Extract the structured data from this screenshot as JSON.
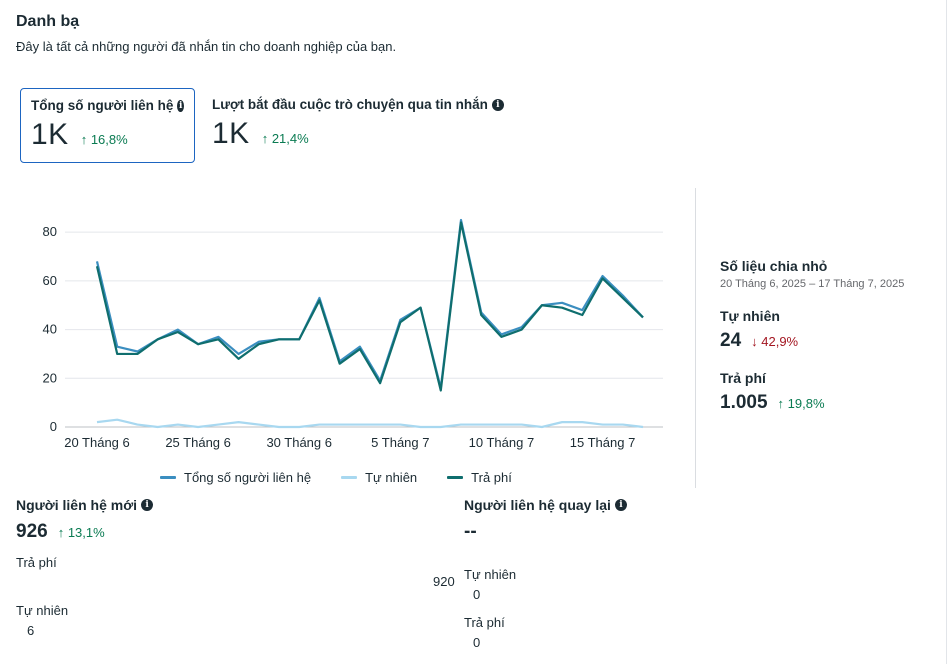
{
  "header": {
    "title": "Danh bạ",
    "subtitle": "Đây là tất cả những người đã nhắn tin cho doanh nghiệp của bạn."
  },
  "metrics": [
    {
      "label": "Tổng số người liên hệ",
      "value": "1K",
      "change": "↑ 16,8%",
      "selected": true
    },
    {
      "label": "Lượt bắt đầu cuộc trò chuyện qua tin nhắn",
      "value": "1K",
      "change": "↑ 21,4%",
      "selected": false
    }
  ],
  "icons": {
    "info": "info-icon",
    "arrow_up": "arrow-up-icon",
    "arrow_down": "arrow-down-icon"
  },
  "colors": {
    "total": "#3b8ec0",
    "organic": "#a8d8f0",
    "paid": "#0f6e6e",
    "positive": "#0a7b52",
    "negative": "#a31621",
    "selected_border": "#1d65c1"
  },
  "chart_data": {
    "type": "line",
    "x": [
      "20 Tháng 6",
      "21 Tháng 6",
      "22 Tháng 6",
      "23 Tháng 6",
      "24 Tháng 6",
      "25 Tháng 6",
      "26 Tháng 6",
      "27 Tháng 6",
      "28 Tháng 6",
      "29 Tháng 6",
      "30 Tháng 6",
      "1 Tháng 7",
      "2 Tháng 7",
      "3 Tháng 7",
      "4 Tháng 7",
      "5 Tháng 7",
      "6 Tháng 7",
      "7 Tháng 7",
      "8 Tháng 7",
      "9 Tháng 7",
      "10 Tháng 7",
      "11 Tháng 7",
      "12 Tháng 7",
      "13 Tháng 7",
      "14 Tháng 7",
      "15 Tháng 7",
      "16 Tháng 7",
      "17 Tháng 7"
    ],
    "x_ticks": [
      "20 Tháng 6",
      "25 Tháng 6",
      "30 Tháng 6",
      "5 Tháng 7",
      "10 Tháng 7",
      "15 Tháng 7"
    ],
    "y_ticks": [
      0,
      20,
      40,
      60,
      80
    ],
    "ylim": [
      0,
      85
    ],
    "grid": true,
    "legend_position": "bottom",
    "series": [
      {
        "name": "Tổng số người liên hệ",
        "color": "#3b8ec0",
        "values": [
          68,
          33,
          31,
          36,
          40,
          34,
          37,
          30,
          35,
          36,
          36,
          53,
          27,
          33,
          19,
          44,
          49,
          16,
          85,
          47,
          38,
          41,
          50,
          51,
          48,
          62,
          54,
          45
        ]
      },
      {
        "name": "Tự nhiên",
        "color": "#a8d8f0",
        "values": [
          2,
          3,
          1,
          0,
          1,
          0,
          1,
          2,
          1,
          0,
          0,
          1,
          1,
          1,
          1,
          1,
          0,
          0,
          1,
          1,
          1,
          1,
          0,
          2,
          2,
          1,
          1,
          0
        ]
      },
      {
        "name": "Trả phí",
        "color": "#0f6e6e",
        "values": [
          66,
          30,
          30,
          36,
          39,
          34,
          36,
          28,
          34,
          36,
          36,
          52,
          26,
          32,
          18,
          43,
          49,
          15,
          84,
          46,
          37,
          40,
          50,
          49,
          46,
          61,
          53,
          45
        ]
      }
    ]
  },
  "breakdown": {
    "title": "Số liệu chia nhỏ",
    "range": "20 Tháng 6, 2025 – 17 Tháng 7, 2025",
    "items": [
      {
        "label": "Tự nhiên",
        "value": "24",
        "change": "↓ 42,9%",
        "direction": "down"
      },
      {
        "label": "Trả phí",
        "value": "1.005",
        "change": "↑ 19,8%",
        "direction": "up"
      }
    ]
  },
  "new_contacts": {
    "title": "Người liên hệ mới",
    "value": "926",
    "change": "↑ 13,1%",
    "paid_label": "Trả phí",
    "paid_value": "920",
    "organic_label": "Tự nhiên",
    "organic_value": "6"
  },
  "returning_contacts": {
    "title": "Người liên hệ quay lại",
    "value": "--",
    "organic_label": "Tự nhiên",
    "organic_value": "0",
    "paid_label": "Trả phí",
    "paid_value": "0"
  }
}
